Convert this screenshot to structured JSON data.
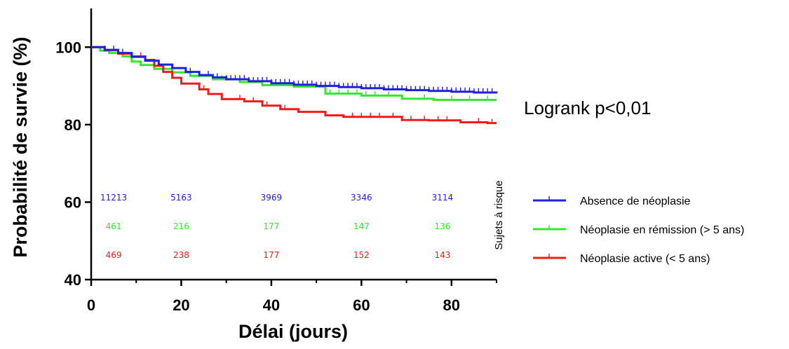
{
  "chart_data": {
    "type": "line",
    "xlabel": "Délai (jours)",
    "ylabel": "Probabilité de survie (%)",
    "xlim": [
      0,
      90
    ],
    "ylim": [
      40,
      110
    ],
    "xticks": [
      0,
      20,
      40,
      60,
      80
    ],
    "yticks": [
      40,
      60,
      80,
      100
    ],
    "grid": false,
    "legend_position": "right",
    "annotation": "Logrank p<0,01",
    "risk_table_title": "Sujets à risque",
    "risk_table_x": [
      5,
      20,
      40,
      60,
      78
    ],
    "series": [
      {
        "name": "Absence de néoplasie",
        "color": "#1f1fe0",
        "x": [
          0,
          3,
          6,
          9,
          12,
          15,
          18,
          21,
          24,
          27,
          30,
          35,
          40,
          45,
          50,
          55,
          60,
          65,
          70,
          75,
          80,
          85,
          90
        ],
        "y": [
          100,
          99.3,
          98.5,
          97.5,
          96.5,
          95.5,
          94.6,
          93.6,
          92.8,
          92.2,
          91.7,
          91.2,
          90.7,
          90.3,
          90.0,
          89.7,
          89.4,
          89.1,
          88.9,
          88.7,
          88.5,
          88.3,
          88.1
        ],
        "censor_x": [
          3,
          5,
          7,
          9,
          22,
          24,
          26,
          28,
          30,
          31,
          32,
          33,
          34,
          35,
          36,
          37,
          38,
          39,
          40,
          41,
          42,
          43,
          44,
          45,
          46,
          47,
          48,
          49,
          50,
          51,
          52,
          53,
          54,
          55,
          56,
          57,
          58,
          59,
          60,
          61,
          62,
          63,
          64,
          65,
          66,
          67,
          68,
          69,
          70,
          71,
          72,
          73,
          74,
          75,
          76,
          77,
          78,
          79,
          80,
          81,
          82,
          83,
          84,
          85,
          86,
          87,
          88,
          89
        ],
        "risk_counts": [
          "11213",
          "5163",
          "3969",
          "3346",
          "3114"
        ]
      },
      {
        "name": "Néoplasie en rémission (> 5 ans)",
        "color": "#33e633",
        "x": [
          0,
          2,
          4,
          7,
          9,
          11,
          14,
          18,
          22,
          27,
          33,
          38,
          45,
          52,
          60,
          69,
          76,
          90
        ],
        "y": [
          100,
          99.1,
          98.5,
          97.6,
          96.3,
          95.4,
          94.4,
          93.5,
          92.6,
          91.7,
          91.0,
          90.2,
          89.8,
          88.0,
          87.5,
          86.7,
          86.4,
          86.4
        ],
        "censor_x": [
          29,
          46,
          53,
          55,
          57,
          59,
          61,
          63,
          66,
          74,
          80,
          84,
          88
        ],
        "risk_counts": [
          "461",
          "216",
          "177",
          "147",
          "136"
        ]
      },
      {
        "name": "Néoplasie active (< 5 ans)",
        "color": "#f01a1a",
        "x": [
          0,
          3,
          6,
          9,
          12,
          14,
          16,
          18,
          20,
          24,
          26,
          29,
          34,
          38,
          42,
          46,
          52,
          56,
          69,
          75,
          82,
          88,
          90
        ],
        "y": [
          100,
          99.2,
          98.3,
          97.6,
          96.7,
          95.2,
          93.6,
          92.1,
          90.6,
          89.1,
          87.9,
          86.6,
          86.0,
          84.9,
          84.0,
          83.3,
          82.4,
          82.0,
          81.2,
          81.1,
          80.6,
          80.4,
          80.4
        ],
        "censor_x": [
          11,
          25,
          33,
          36,
          39,
          43,
          58,
          60,
          62,
          64,
          67,
          71,
          74,
          77,
          79,
          86,
          89
        ],
        "risk_counts": [
          "469",
          "238",
          "177",
          "152",
          "143"
        ]
      }
    ]
  }
}
